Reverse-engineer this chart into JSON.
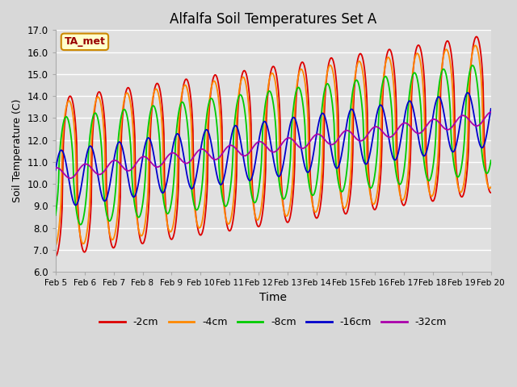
{
  "title": "Alfalfa Soil Temperatures Set A",
  "xlabel": "Time",
  "ylabel": "Soil Temperature (C)",
  "ylim": [
    6.0,
    17.0
  ],
  "yticks": [
    6.0,
    7.0,
    8.0,
    9.0,
    10.0,
    11.0,
    12.0,
    13.0,
    14.0,
    15.0,
    16.0,
    17.0
  ],
  "xtick_labels": [
    "Feb 5",
    "Feb 6",
    "Feb 7",
    "Feb 8",
    "Feb 9",
    "Feb 10",
    "Feb 11",
    "Feb 12",
    "Feb 13",
    "Feb 14",
    "Feb 15",
    "Feb 16",
    "Feb 17",
    "Feb 18",
    "Feb 19",
    "Feb 20"
  ],
  "colors": {
    "-2cm": "#dd0000",
    "-4cm": "#ff8800",
    "-8cm": "#00cc00",
    "-16cm": "#0000cc",
    "-32cm": "#aa00aa"
  },
  "legend_label": "TA_met",
  "bg_color": "#d8d8d8",
  "plot_bg": "#e0e0e0",
  "grid_color": "#ffffff",
  "line_width": 1.3
}
